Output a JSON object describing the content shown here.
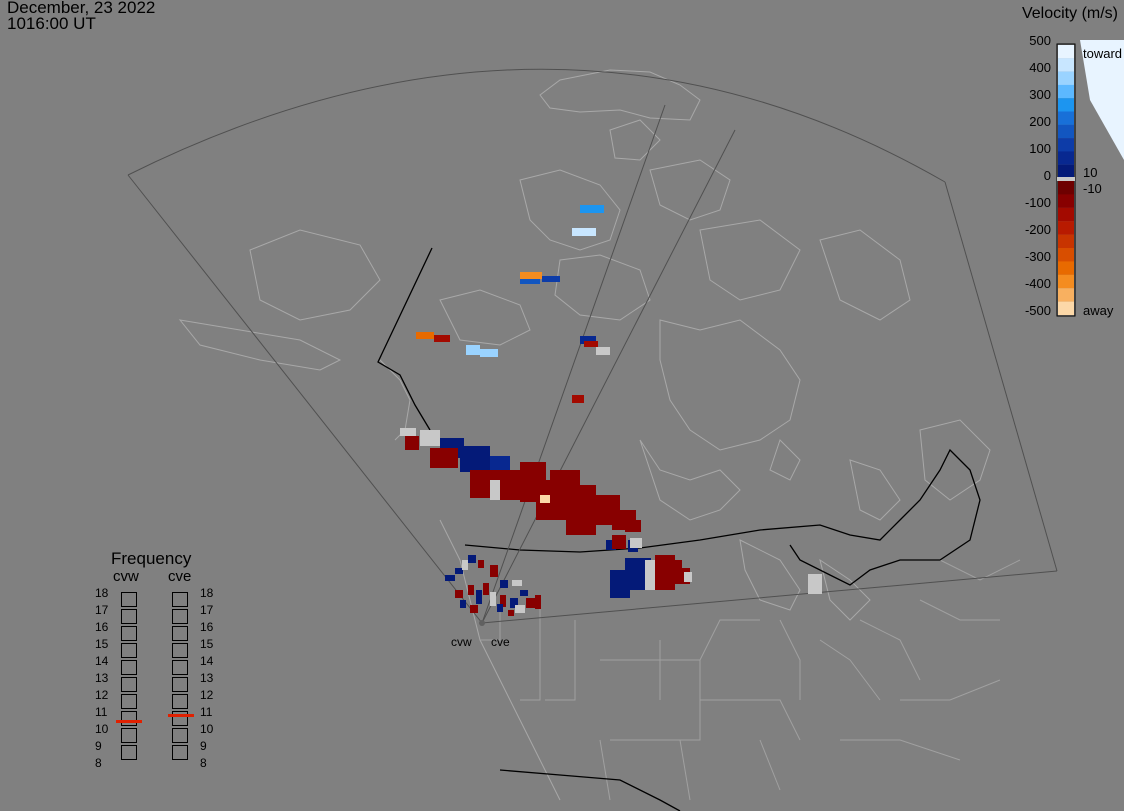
{
  "header": {
    "date": "December, 23 2022",
    "time": "1016:00 UT"
  },
  "colorbar": {
    "title": "Velocity (m/s)",
    "ticks": [
      "500",
      "400",
      "300",
      "200",
      "100",
      "0",
      "-100",
      "-200",
      "-300",
      "-400",
      "-500"
    ],
    "toward_label": "toward",
    "away_label": "away",
    "inner_pos_label": "10",
    "inner_neg_label": "-10",
    "colors_toward": [
      "#e8f4ff",
      "#c8e6ff",
      "#9ad3ff",
      "#5cb8ff",
      "#1c95f0",
      "#1870d8",
      "#1256c0",
      "#0d3ca8",
      "#082890",
      "#041a78"
    ],
    "colors_away": [
      "#6e0000",
      "#880000",
      "#a30a00",
      "#b81a00",
      "#c83400",
      "#d84e00",
      "#e86a00",
      "#f48c20",
      "#f8b060",
      "#fcd8a8"
    ],
    "ground_color": "#c8c8c8"
  },
  "frequency": {
    "title": "Frequency",
    "radars": [
      {
        "name": "cvw",
        "selected": 10.5
      },
      {
        "name": "cve",
        "selected": 10.8
      }
    ],
    "levels": [
      "18",
      "17",
      "16",
      "15",
      "14",
      "13",
      "12",
      "11",
      "10",
      "9",
      "8"
    ]
  },
  "radar_sites": [
    {
      "name": "cvw"
    },
    {
      "name": "cve"
    }
  ],
  "legend_colors": {
    "marker": "#e02000"
  }
}
